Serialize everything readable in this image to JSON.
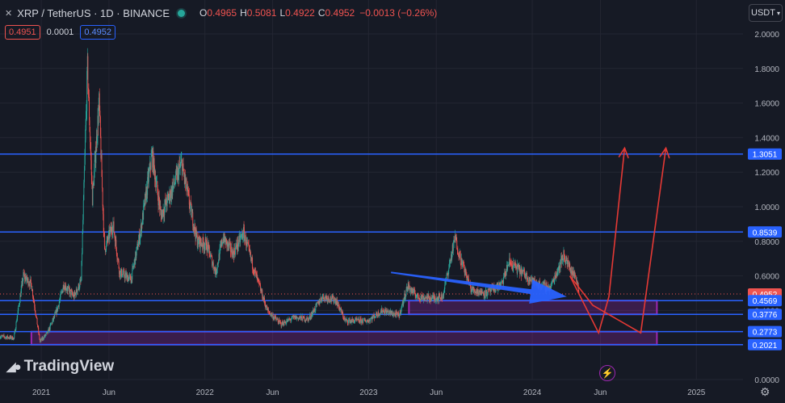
{
  "header": {
    "symbol_icon": "x-logo-icon",
    "title": "XRP / TetherUS · 1D · BINANCE",
    "status_color": "#26a69a",
    "ohlc": [
      {
        "key": "O",
        "value": "0.4965"
      },
      {
        "key": "H",
        "value": "0.5081"
      },
      {
        "key": "L",
        "value": "0.4922"
      },
      {
        "key": "C",
        "value": "0.4952"
      },
      {
        "key": "",
        "value": "−0.0013 (−0.26%)"
      }
    ]
  },
  "trade": {
    "sell_price": "0.4951",
    "spread": "0.0001",
    "buy_price": "0.4952"
  },
  "currency_selector": {
    "label": "USDT",
    "icon": "chevron-down-icon"
  },
  "branding": {
    "logo_text": "TradingView",
    "logo_icon": "tradingview-logo-icon"
  },
  "footer_icons": {
    "bolt": "lightning-icon",
    "settings": "gear-icon"
  },
  "colors": {
    "background": "#161a25",
    "grid": "#232632",
    "bull": "#26a69a",
    "bear": "#ef5350",
    "line": "#2962ff",
    "box": "#9c27b0",
    "arrow": "#2962ff",
    "forecast": "#e53935"
  },
  "chart_data": {
    "type": "candlestick",
    "series_name": "XRP / TetherUS",
    "y_axis": {
      "min": 0.0,
      "max": 2.0,
      "ticks": [
        2.0,
        1.8,
        1.6,
        1.4,
        1.2,
        1.0,
        0.8,
        0.6,
        0.4,
        0.2,
        0.0
      ]
    },
    "x_axis": {
      "start": "2020-10-01",
      "end": "2025-04-15",
      "ticks": [
        {
          "label": "2021",
          "date": "2021-01-01"
        },
        {
          "label": "Jun",
          "date": "2021-06-01"
        },
        {
          "label": "2022",
          "date": "2022-01-01"
        },
        {
          "label": "Jun",
          "date": "2022-06-01"
        },
        {
          "label": "2023",
          "date": "2023-01-01"
        },
        {
          "label": "Jun",
          "date": "2023-06-01"
        },
        {
          "label": "2024",
          "date": "2024-01-01"
        },
        {
          "label": "Jun",
          "date": "2024-06-01"
        },
        {
          "label": "2025",
          "date": "2025-01-01"
        }
      ]
    },
    "price_path": [
      [
        "2020-10-01",
        0.25
      ],
      [
        "2020-11-01",
        0.24
      ],
      [
        "2020-11-22",
        0.6
      ],
      [
        "2020-12-10",
        0.55
      ],
      [
        "2020-12-29",
        0.22
      ],
      [
        "2021-01-15",
        0.27
      ],
      [
        "2021-02-05",
        0.4
      ],
      [
        "2021-02-20",
        0.55
      ],
      [
        "2021-03-15",
        0.48
      ],
      [
        "2021-03-31",
        0.57
      ],
      [
        "2021-04-14",
        1.8
      ],
      [
        "2021-04-25",
        1.05
      ],
      [
        "2021-05-10",
        1.6
      ],
      [
        "2021-05-22",
        0.75
      ],
      [
        "2021-06-10",
        0.9
      ],
      [
        "2021-06-25",
        0.62
      ],
      [
        "2021-07-20",
        0.58
      ],
      [
        "2021-08-10",
        0.85
      ],
      [
        "2021-09-05",
        1.3
      ],
      [
        "2021-09-25",
        0.95
      ],
      [
        "2021-10-20",
        1.1
      ],
      [
        "2021-11-10",
        1.25
      ],
      [
        "2021-11-25",
        1.05
      ],
      [
        "2021-12-15",
        0.8
      ],
      [
        "2022-01-05",
        0.78
      ],
      [
        "2022-01-25",
        0.62
      ],
      [
        "2022-02-10",
        0.82
      ],
      [
        "2022-03-05",
        0.73
      ],
      [
        "2022-03-28",
        0.85
      ],
      [
        "2022-04-20",
        0.64
      ],
      [
        "2022-05-20",
        0.4
      ],
      [
        "2022-06-20",
        0.32
      ],
      [
        "2022-07-20",
        0.36
      ],
      [
        "2022-08-20",
        0.35
      ],
      [
        "2022-09-20",
        0.48
      ],
      [
        "2022-10-20",
        0.46
      ],
      [
        "2022-11-10",
        0.34
      ],
      [
        "2022-12-30",
        0.34
      ],
      [
        "2023-02-01",
        0.4
      ],
      [
        "2023-03-10",
        0.37
      ],
      [
        "2023-03-29",
        0.54
      ],
      [
        "2023-04-20",
        0.48
      ],
      [
        "2023-05-20",
        0.47
      ],
      [
        "2023-06-15",
        0.48
      ],
      [
        "2023-07-13",
        0.82
      ],
      [
        "2023-07-25",
        0.7
      ],
      [
        "2023-08-18",
        0.52
      ],
      [
        "2023-09-20",
        0.5
      ],
      [
        "2023-10-25",
        0.55
      ],
      [
        "2023-11-10",
        0.68
      ],
      [
        "2023-12-10",
        0.62
      ],
      [
        "2024-01-05",
        0.56
      ],
      [
        "2024-02-10",
        0.53
      ],
      [
        "2024-03-11",
        0.72
      ],
      [
        "2024-03-28",
        0.63
      ],
      [
        "2024-04-10",
        0.58
      ],
      [
        "2024-04-14",
        0.4952
      ]
    ],
    "annotations": {
      "horizontal_lines": [
        1.3051,
        0.8539,
        0.4569,
        0.3776,
        0.2773,
        0.2021
      ],
      "last_price": 0.4952,
      "price_labels": [
        {
          "text": "1.3051",
          "value": 1.3051,
          "bg": "#2962ff"
        },
        {
          "text": "0.8539",
          "value": 0.8539,
          "bg": "#2962ff"
        },
        {
          "text": "0.4952",
          "value": 0.4952,
          "bg": "#ef5350"
        },
        {
          "text": "0.4569",
          "value": 0.4569,
          "bg": "#2962ff"
        },
        {
          "text": "0.3776",
          "value": 0.3776,
          "bg": "#2962ff"
        },
        {
          "text": "0.2773",
          "value": 0.2773,
          "bg": "#2962ff"
        },
        {
          "text": "0.2021",
          "value": 0.2021,
          "bg": "#2962ff"
        }
      ],
      "zones": [
        {
          "from": "2023-04-01",
          "to": "2024-10-05",
          "low": 0.3776,
          "high": 0.4569
        },
        {
          "from": "2020-12-10",
          "to": "2024-10-05",
          "low": 0.2021,
          "high": 0.2773
        }
      ],
      "blue_arrow": {
        "from": [
          "2023-02-20",
          0.62
        ],
        "to": [
          "2024-03-18",
          0.48
        ]
      },
      "forecast_paths": [
        [
          [
            "2024-03-25",
            0.6
          ],
          [
            "2024-05-28",
            0.27
          ],
          [
            "2024-06-20",
            0.48
          ],
          [
            "2024-07-25",
            1.34
          ]
        ],
        [
          [
            "2024-03-25",
            0.6
          ],
          [
            "2024-05-15",
            0.43
          ],
          [
            "2024-08-30",
            0.27
          ],
          [
            "2024-10-25",
            1.34
          ]
        ]
      ]
    }
  }
}
